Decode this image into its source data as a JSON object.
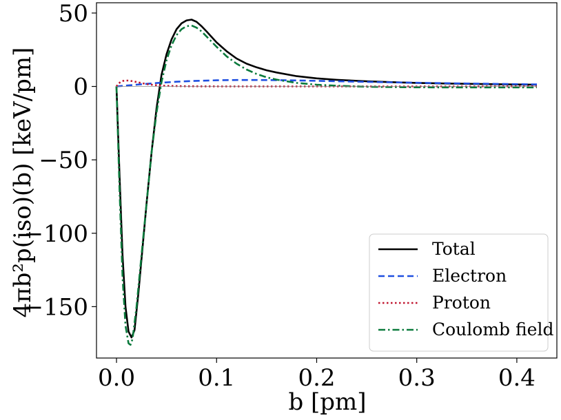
{
  "chart_data": {
    "type": "line",
    "xlabel": "b [pm]",
    "ylabel": "4πb²p(iso)(b) [keV/pm]",
    "xlim": [
      -0.02,
      0.44
    ],
    "ylim": [
      -185,
      57
    ],
    "xticks": [
      0.0,
      0.1,
      0.2,
      0.3,
      0.4
    ],
    "xtick_labels": [
      "0.0",
      "0.1",
      "0.2",
      "0.3",
      "0.4"
    ],
    "yticks": [
      -150,
      -100,
      -50,
      0,
      50
    ],
    "ytick_labels": [
      "−150",
      "−100",
      "−50",
      "0",
      "50"
    ],
    "grid": false,
    "legend_position": "lower-right",
    "series": [
      {
        "name": "Total",
        "color": "#000000",
        "dash": "solid",
        "x": [
          0,
          0.003,
          0.006,
          0.009,
          0.012,
          0.015,
          0.018,
          0.022,
          0.026,
          0.03,
          0.035,
          0.04,
          0.045,
          0.05,
          0.055,
          0.06,
          0.065,
          0.07,
          0.075,
          0.08,
          0.085,
          0.09,
          0.1,
          0.11,
          0.12,
          0.13,
          0.14,
          0.15,
          0.16,
          0.18,
          0.2,
          0.22,
          0.25,
          0.28,
          0.3,
          0.33,
          0.36,
          0.39,
          0.42
        ],
        "y": [
          0,
          -60,
          -115,
          -150,
          -167,
          -171,
          -166,
          -140,
          -110,
          -80,
          -45,
          -15,
          8,
          22,
          32,
          39,
          43,
          45,
          45.5,
          44,
          41,
          37.5,
          30,
          24,
          19,
          15.5,
          13,
          11,
          9.5,
          7,
          5.5,
          4.5,
          3.5,
          2.8,
          2.4,
          2,
          1.7,
          1.4,
          1.2
        ]
      },
      {
        "name": "Electron",
        "color": "#1f4fe0",
        "dash": "dashed",
        "x": [
          0,
          0.02,
          0.04,
          0.06,
          0.08,
          0.1,
          0.12,
          0.14,
          0.16,
          0.18,
          0.2,
          0.25,
          0.3,
          0.35,
          0.42
        ],
        "y": [
          0,
          1.2,
          2.3,
          3.2,
          3.8,
          4.2,
          4.4,
          4.4,
          4.3,
          4.1,
          3.8,
          3.1,
          2.5,
          2,
          1.4
        ]
      },
      {
        "name": "Proton",
        "color": "#c0142f",
        "dash": "dotted",
        "x": [
          0,
          0.002,
          0.005,
          0.008,
          0.012,
          0.016,
          0.02,
          0.025,
          0.03,
          0.04,
          0.05,
          0.07,
          0.1,
          0.15,
          0.2,
          0.3,
          0.42
        ],
        "y": [
          0,
          2,
          3.5,
          4,
          4,
          3.6,
          3,
          2.3,
          1.6,
          0.8,
          0.4,
          0.1,
          0,
          0,
          0,
          0,
          0
        ]
      },
      {
        "name": "Coulomb field",
        "color": "#0a7a3c",
        "dash": "dashdot",
        "x": [
          0,
          0.003,
          0.006,
          0.009,
          0.012,
          0.014,
          0.016,
          0.02,
          0.025,
          0.03,
          0.035,
          0.04,
          0.045,
          0.05,
          0.055,
          0.06,
          0.065,
          0.07,
          0.075,
          0.08,
          0.085,
          0.09,
          0.1,
          0.11,
          0.12,
          0.13,
          0.14,
          0.15,
          0.16,
          0.18,
          0.2,
          0.22,
          0.25,
          0.28,
          0.3,
          0.33,
          0.36,
          0.39,
          0.42
        ],
        "y": [
          0,
          -70,
          -130,
          -163,
          -175,
          -176,
          -172,
          -150,
          -115,
          -80,
          -45,
          -18,
          3,
          18,
          28,
          35,
          39,
          41,
          41.5,
          40,
          37.5,
          34,
          27,
          20.5,
          15.5,
          11.5,
          8.5,
          6.2,
          4.6,
          2.4,
          1.2,
          0.5,
          -0.2,
          -0.5,
          -0.6,
          -0.7,
          -0.7,
          -0.7,
          -0.7
        ]
      }
    ]
  }
}
